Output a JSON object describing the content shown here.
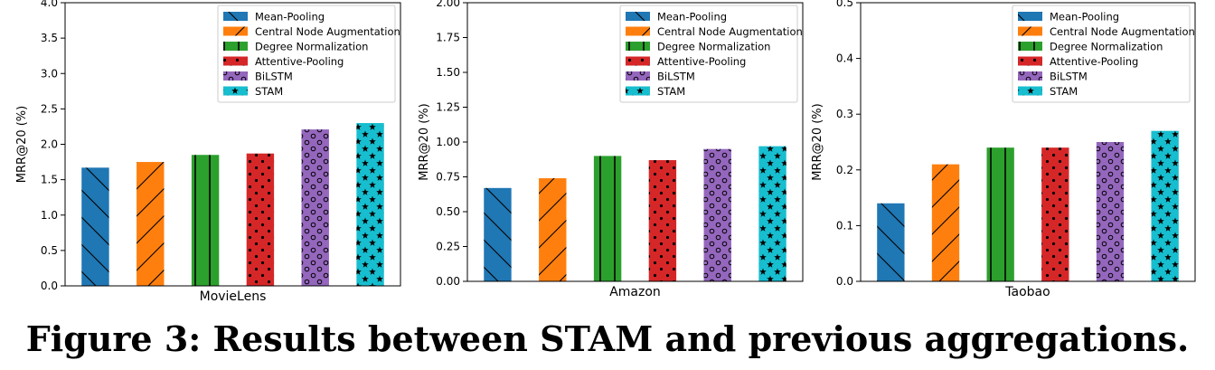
{
  "caption": "Figure 3: Results between STAM and previous aggregations.",
  "legend_labels": [
    "Mean-Pooling",
    "Central Node Augmentation",
    "Degree Normalization",
    "Attentive-Pooling",
    "BiLSTM",
    "STAM"
  ],
  "series_colors": [
    "#1f77b4",
    "#ff7f0e",
    "#2ca02c",
    "#d62728",
    "#9467bd",
    "#17becf"
  ],
  "series_patterns": [
    "diagonal-backslash",
    "diagonal-slash",
    "vertical-line",
    "dots",
    "small-circles",
    "stars"
  ],
  "chart_data": [
    {
      "type": "bar",
      "xlabel": "MovieLens",
      "ylabel": "MRR@20 (%)",
      "ylim": [
        0,
        4.0
      ],
      "yticks": [
        "0.0",
        "0.5",
        "1.0",
        "1.5",
        "2.0",
        "2.5",
        "3.0",
        "3.5",
        "4.0"
      ],
      "legend_position": "top-right",
      "grid": false,
      "series": [
        {
          "name": "Mean-Pooling",
          "value": 1.67
        },
        {
          "name": "Central Node Augmentation",
          "value": 1.75
        },
        {
          "name": "Degree Normalization",
          "value": 1.85
        },
        {
          "name": "Attentive-Pooling",
          "value": 1.87
        },
        {
          "name": "BiLSTM",
          "value": 2.21
        },
        {
          "name": "STAM",
          "value": 2.3
        }
      ]
    },
    {
      "type": "bar",
      "xlabel": "Amazon",
      "ylabel": "MRR@20 (%)",
      "ylim": [
        0,
        2.0
      ],
      "yticks": [
        "0.00",
        "0.25",
        "0.50",
        "0.75",
        "1.00",
        "1.25",
        "1.50",
        "1.75",
        "2.00"
      ],
      "legend_position": "top-right",
      "grid": false,
      "series": [
        {
          "name": "Mean-Pooling",
          "value": 0.67
        },
        {
          "name": "Central Node Augmentation",
          "value": 0.74
        },
        {
          "name": "Degree Normalization",
          "value": 0.9
        },
        {
          "name": "Attentive-Pooling",
          "value": 0.87
        },
        {
          "name": "BiLSTM",
          "value": 0.95
        },
        {
          "name": "STAM",
          "value": 0.97
        }
      ]
    },
    {
      "type": "bar",
      "xlabel": "Taobao",
      "ylabel": "MRR@20 (%)",
      "ylim": [
        0,
        0.5
      ],
      "yticks": [
        "0.0",
        "0.1",
        "0.2",
        "0.3",
        "0.4",
        "0.5"
      ],
      "legend_position": "top-right",
      "grid": false,
      "series": [
        {
          "name": "Mean-Pooling",
          "value": 0.14
        },
        {
          "name": "Central Node Augmentation",
          "value": 0.21
        },
        {
          "name": "Degree Normalization",
          "value": 0.24
        },
        {
          "name": "Attentive-Pooling",
          "value": 0.24
        },
        {
          "name": "BiLSTM",
          "value": 0.25
        },
        {
          "name": "STAM",
          "value": 0.27
        }
      ]
    }
  ]
}
